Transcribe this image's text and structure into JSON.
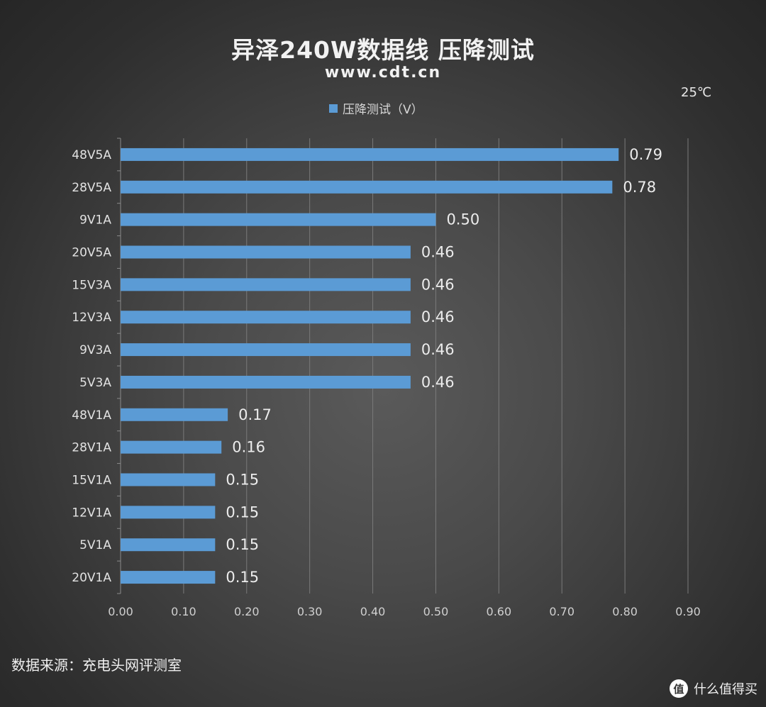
{
  "title": "异泽240W数据线 压降测试",
  "subtitle": "www.cdt.cn",
  "temperature": "25℃",
  "legend_label": "压降测试（V）",
  "source": "数据来源：充电头网评测室",
  "watermark": "什么值得买",
  "watermark_icon": "值",
  "colors": {
    "bar": "#5b9bd5",
    "grid": "#7a7a7a"
  },
  "chart_data": {
    "type": "bar",
    "orientation": "horizontal",
    "title": "异泽240W数据线 压降测试",
    "categories": [
      "48V5A",
      "28V5A",
      "9V1A",
      "20V5A",
      "15V3A",
      "12V3A",
      "9V3A",
      "5V3A",
      "48V1A",
      "28V1A",
      "15V1A",
      "12V1A",
      "5V1A",
      "20V1A"
    ],
    "series": [
      {
        "name": "压降测试（V）",
        "values": [
          0.79,
          0.78,
          0.5,
          0.46,
          0.46,
          0.46,
          0.46,
          0.46,
          0.17,
          0.16,
          0.15,
          0.15,
          0.15,
          0.15
        ],
        "labels": [
          "0.79",
          "0.78",
          "0.50",
          "0.46",
          "0.46",
          "0.46",
          "0.46",
          "0.46",
          "0.17",
          "0.16",
          "0.15",
          "0.15",
          "0.15",
          "0.15"
        ]
      }
    ],
    "xlim": [
      0,
      0.9
    ],
    "xticks": [
      "0.00",
      "0.10",
      "0.20",
      "0.30",
      "0.40",
      "0.50",
      "0.60",
      "0.70",
      "0.80",
      "0.90"
    ],
    "grid": true,
    "legend": "top"
  }
}
